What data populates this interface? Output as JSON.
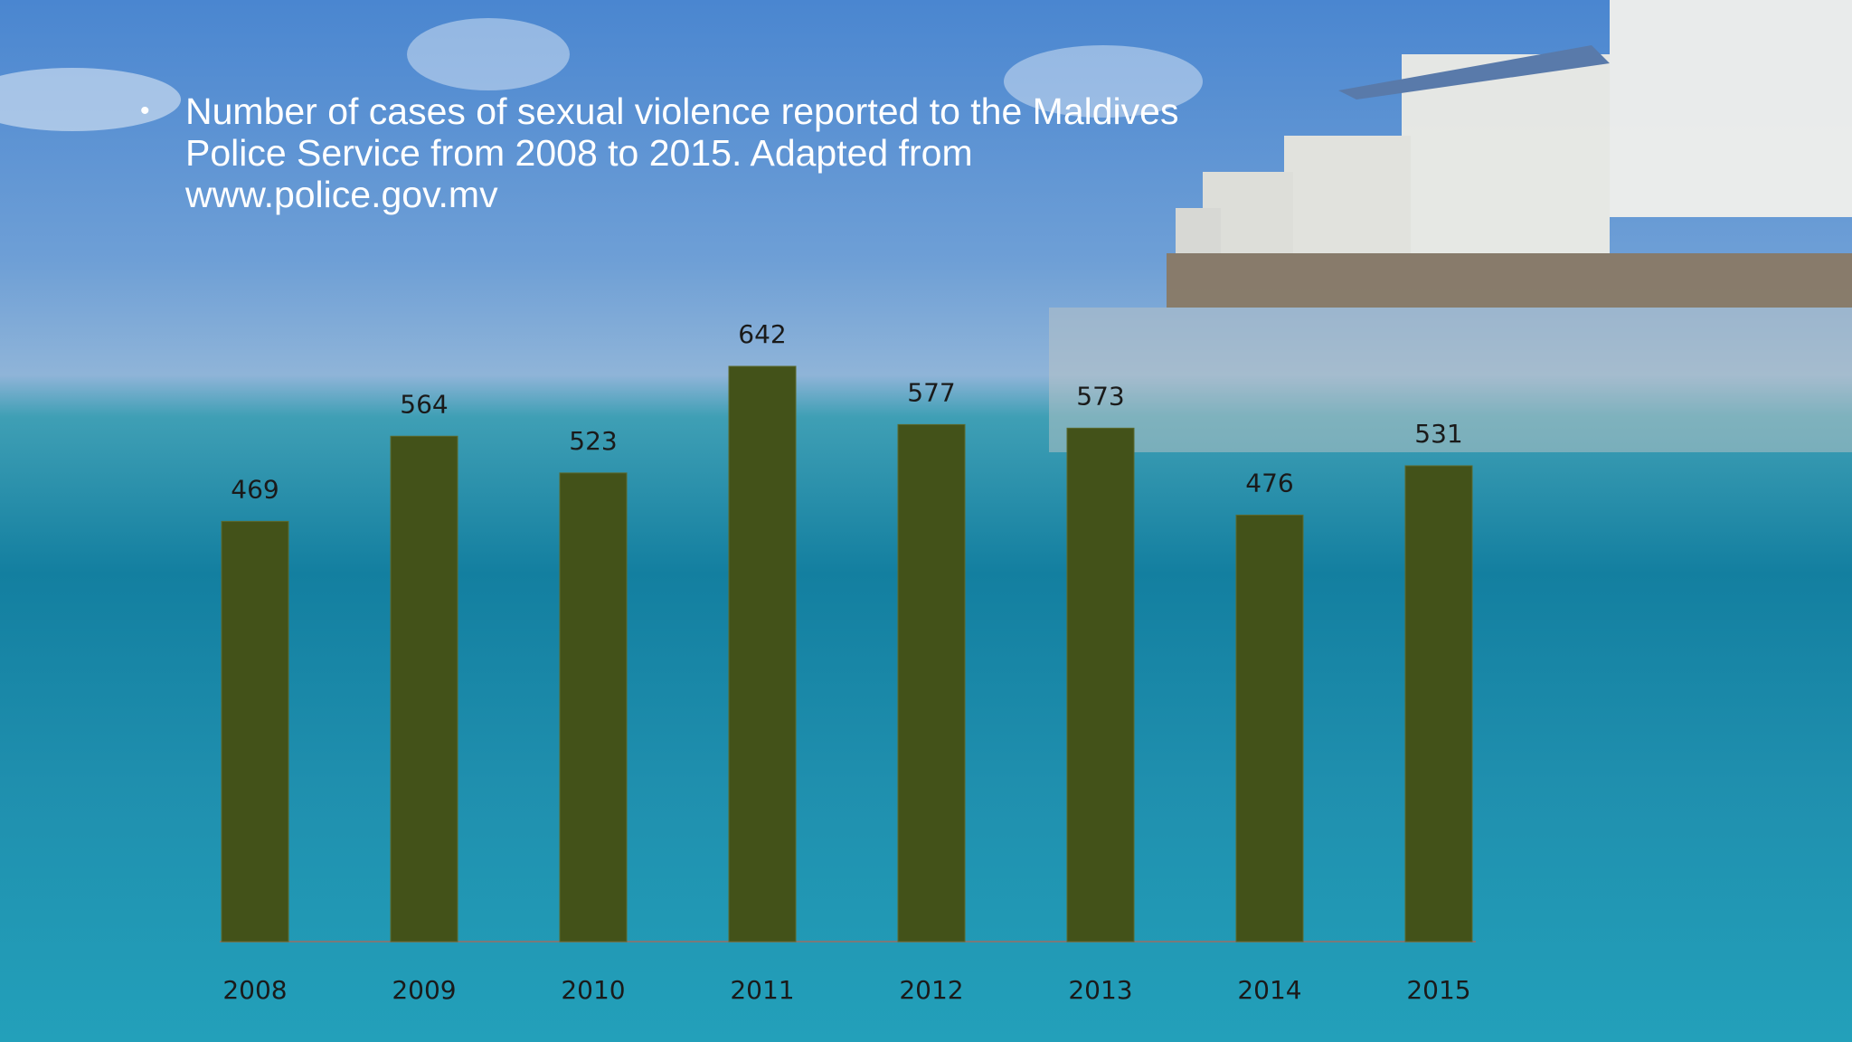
{
  "chart_data": {
    "type": "bar",
    "title": "Number of cases of sexual violence reported to the Maldives Police Service from 2008 to 2015. Adapted from www.police.gov.mv",
    "categories": [
      "2008",
      "2009",
      "2010",
      "2011",
      "2012",
      "2013",
      "2014",
      "2015"
    ],
    "values": [
      469,
      564,
      523,
      642,
      577,
      573,
      476,
      531
    ],
    "color": "#435219"
  }
}
